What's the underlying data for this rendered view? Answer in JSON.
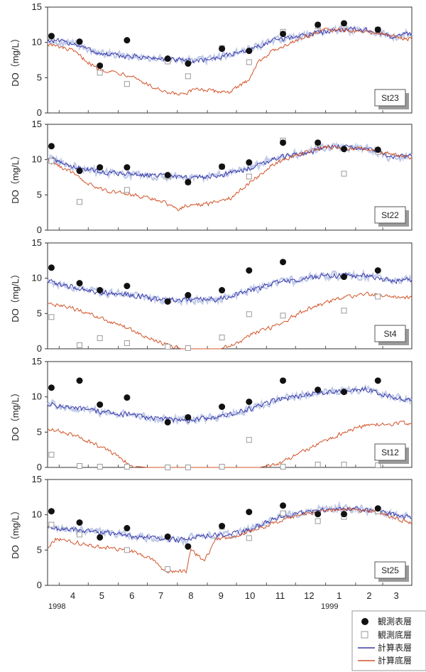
{
  "chart_data": {
    "type": "line",
    "y_axis_label": "DO（mg/L）",
    "yticks": [
      "0",
      "5",
      "10",
      "15"
    ],
    "ylim": [
      0,
      15
    ],
    "x_month_ticks": [
      "4",
      "5",
      "6",
      "7",
      "8",
      "9",
      "10",
      "11",
      "12",
      "1",
      "2",
      "3"
    ],
    "x_year_labels": [
      "1998",
      "1999"
    ],
    "x_domain": [
      "1998-03-20",
      "1999-03-31"
    ],
    "legend": {
      "obs_surface": "観測表層",
      "obs_bottom": "観測底層",
      "calc_surface": "計算表層",
      "calc_bottom": "計算底層"
    },
    "colors": {
      "calc_surface": "#3a3aa8",
      "calc_surface_halo": "#b9c4e6",
      "calc_bottom": "#d2542a",
      "obs_bottom_edge": "#9a9a9a"
    },
    "panels": [
      {
        "station": "St23",
        "obs_surface": [
          [
            "1998-03-24",
            10.9
          ],
          [
            "1998-04-22",
            10.1
          ],
          [
            "1998-05-13",
            6.7
          ],
          [
            "1998-06-10",
            10.3
          ],
          [
            "1998-07-22",
            7.7
          ],
          [
            "1998-08-12",
            7.0
          ],
          [
            "1998-09-16",
            9.1
          ],
          [
            "1998-10-14",
            8.8
          ],
          [
            "1998-11-18",
            11.2
          ],
          [
            "1998-12-24",
            12.5
          ],
          [
            "1999-01-20",
            12.7
          ],
          [
            "1999-02-24",
            11.8
          ]
        ],
        "obs_bottom": [
          [
            "1998-03-24",
            10.8
          ],
          [
            "1998-05-13",
            5.7
          ],
          [
            "1998-06-10",
            4.1
          ],
          [
            "1998-07-22",
            7.3
          ],
          [
            "1998-08-12",
            5.2
          ],
          [
            "1998-09-16",
            9.2
          ],
          [
            "1998-10-14",
            7.2
          ],
          [
            "1998-11-18",
            11.5
          ],
          [
            "1998-12-24",
            12.3
          ],
          [
            "1999-01-20",
            12.4
          ],
          [
            "1999-02-24",
            11.8
          ]
        ],
        "calc_surface": [
          [
            "1998-03-20",
            10.3
          ],
          [
            "1998-04-15",
            9.9
          ],
          [
            "1998-05-15",
            8.3
          ],
          [
            "1998-06-15",
            8.0
          ],
          [
            "1998-07-15",
            7.7
          ],
          [
            "1998-08-15",
            7.3
          ],
          [
            "1998-09-10",
            7.8
          ],
          [
            "1998-10-10",
            8.8
          ],
          [
            "1998-11-10",
            10.3
          ],
          [
            "1998-12-10",
            11.0
          ],
          [
            "1998-12-28",
            11.5
          ],
          [
            "1999-01-15",
            11.9
          ],
          [
            "1999-02-15",
            11.7
          ],
          [
            "1999-03-10",
            10.8
          ],
          [
            "1999-03-31",
            11.3
          ]
        ],
        "calc_bottom": [
          [
            "1998-03-20",
            9.8
          ],
          [
            "1998-04-15",
            8.8
          ],
          [
            "1998-05-10",
            6.3
          ],
          [
            "1998-06-15",
            5.3
          ],
          [
            "1998-07-01",
            4.0
          ],
          [
            "1998-07-20",
            2.8
          ],
          [
            "1998-08-10",
            2.6
          ],
          [
            "1998-08-20",
            3.5
          ],
          [
            "1998-09-05",
            3.1
          ],
          [
            "1998-09-25",
            3.0
          ],
          [
            "1998-10-12",
            4.5
          ],
          [
            "1998-10-25",
            7.5
          ],
          [
            "1998-11-10",
            9.0
          ],
          [
            "1998-12-05",
            10.5
          ],
          [
            "1999-01-01",
            11.8
          ],
          [
            "1999-02-15",
            11.5
          ],
          [
            "1999-03-31",
            10.4
          ]
        ]
      },
      {
        "station": "St22",
        "obs_surface": [
          [
            "1998-03-24",
            11.9
          ],
          [
            "1998-04-22",
            8.4
          ],
          [
            "1998-05-13",
            8.9
          ],
          [
            "1998-06-10",
            8.9
          ],
          [
            "1998-07-22",
            7.8
          ],
          [
            "1998-08-12",
            6.8
          ],
          [
            "1998-09-16",
            9.0
          ],
          [
            "1998-10-14",
            9.6
          ],
          [
            "1998-11-18",
            12.4
          ],
          [
            "1998-12-24",
            12.4
          ],
          [
            "1999-01-20",
            11.5
          ],
          [
            "1999-02-24",
            11.4
          ]
        ],
        "obs_bottom": [
          [
            "1998-03-24",
            9.8
          ],
          [
            "1998-04-22",
            4.0
          ],
          [
            "1998-06-10",
            5.7
          ],
          [
            "1998-07-22",
            7.6
          ],
          [
            "1998-08-12",
            6.8
          ],
          [
            "1998-09-16",
            9.0
          ],
          [
            "1998-10-14",
            7.6
          ],
          [
            "1998-11-18",
            12.7
          ],
          [
            "1998-12-24",
            12.2
          ],
          [
            "1999-01-20",
            8.0
          ],
          [
            "1999-02-24",
            11.1
          ]
        ],
        "calc_surface": [
          [
            "1998-03-20",
            10.2
          ],
          [
            "1998-04-15",
            9.0
          ],
          [
            "1998-05-15",
            8.2
          ],
          [
            "1998-06-15",
            8.0
          ],
          [
            "1998-07-15",
            7.7
          ],
          [
            "1998-08-15",
            7.4
          ],
          [
            "1998-09-10",
            7.7
          ],
          [
            "1998-10-10",
            8.6
          ],
          [
            "1998-11-10",
            10.2
          ],
          [
            "1998-12-10",
            10.9
          ],
          [
            "1998-12-28",
            11.6
          ],
          [
            "1999-01-15",
            11.9
          ],
          [
            "1999-02-15",
            11.5
          ],
          [
            "1999-03-10",
            10.2
          ],
          [
            "1999-03-31",
            10.5
          ]
        ],
        "calc_bottom": [
          [
            "1998-03-20",
            9.9
          ],
          [
            "1998-04-10",
            8.5
          ],
          [
            "1998-05-01",
            6.5
          ],
          [
            "1998-05-20",
            5.6
          ],
          [
            "1998-06-15",
            5.0
          ],
          [
            "1998-07-15",
            4.2
          ],
          [
            "1998-08-01",
            3.0
          ],
          [
            "1998-08-15",
            3.6
          ],
          [
            "1998-09-05",
            3.8
          ],
          [
            "1998-09-25",
            4.6
          ],
          [
            "1998-10-15",
            6.8
          ],
          [
            "1998-11-10",
            9.5
          ],
          [
            "1998-12-05",
            10.8
          ],
          [
            "1999-01-01",
            11.8
          ],
          [
            "1999-02-15",
            11.4
          ],
          [
            "1999-03-31",
            10.3
          ]
        ]
      },
      {
        "station": "St4",
        "obs_surface": [
          [
            "1998-03-24",
            11.5
          ],
          [
            "1998-04-22",
            9.3
          ],
          [
            "1998-05-13",
            8.3
          ],
          [
            "1998-06-10",
            8.9
          ],
          [
            "1998-07-22",
            6.7
          ],
          [
            "1998-08-12",
            7.6
          ],
          [
            "1998-09-16",
            8.3
          ],
          [
            "1998-10-14",
            11.1
          ],
          [
            "1998-11-18",
            12.3
          ],
          [
            "1999-01-20",
            10.2
          ],
          [
            "1999-02-24",
            11.1
          ]
        ],
        "obs_bottom": [
          [
            "1998-03-24",
            4.5
          ],
          [
            "1998-04-22",
            0.5
          ],
          [
            "1998-05-13",
            1.5
          ],
          [
            "1998-06-10",
            0.8
          ],
          [
            "1998-07-22",
            0.3
          ],
          [
            "1998-08-12",
            0.1
          ],
          [
            "1998-09-16",
            1.6
          ],
          [
            "1998-10-14",
            4.9
          ],
          [
            "1998-11-18",
            4.7
          ],
          [
            "1999-01-20",
            5.4
          ],
          [
            "1999-02-24",
            7.4
          ]
        ],
        "calc_surface": [
          [
            "1998-03-20",
            9.6
          ],
          [
            "1998-04-15",
            8.7
          ],
          [
            "1998-05-15",
            8.0
          ],
          [
            "1998-06-15",
            7.6
          ],
          [
            "1998-07-15",
            6.9
          ],
          [
            "1998-08-15",
            6.9
          ],
          [
            "1998-09-10",
            7.0
          ],
          [
            "1998-10-10",
            8.0
          ],
          [
            "1998-11-10",
            9.4
          ],
          [
            "1998-12-10",
            9.9
          ],
          [
            "1999-01-01",
            10.4
          ],
          [
            "1999-02-01",
            10.4
          ],
          [
            "1999-02-20",
            10.2
          ],
          [
            "1999-03-10",
            9.6
          ],
          [
            "1999-03-31",
            9.8
          ]
        ],
        "calc_bottom": [
          [
            "1998-03-20",
            6.4
          ],
          [
            "1998-04-15",
            5.7
          ],
          [
            "1998-05-10",
            4.5
          ],
          [
            "1998-06-10",
            3.0
          ],
          [
            "1998-07-01",
            1.5
          ],
          [
            "1998-07-25",
            0.4
          ],
          [
            "1998-08-05",
            0.0
          ],
          [
            "1998-09-15",
            0.0
          ],
          [
            "1998-10-05",
            1.0
          ],
          [
            "1998-10-20",
            2.3
          ],
          [
            "1998-11-10",
            3.2
          ],
          [
            "1998-12-10",
            5.4
          ],
          [
            "1999-01-10",
            7.0
          ],
          [
            "1999-02-10",
            7.8
          ],
          [
            "1999-03-31",
            7.2
          ]
        ]
      },
      {
        "station": "St12",
        "obs_surface": [
          [
            "1998-03-24",
            11.3
          ],
          [
            "1998-04-22",
            12.3
          ],
          [
            "1998-05-13",
            8.9
          ],
          [
            "1998-06-10",
            9.9
          ],
          [
            "1998-07-22",
            6.4
          ],
          [
            "1998-08-12",
            7.1
          ],
          [
            "1998-09-16",
            8.6
          ],
          [
            "1998-10-14",
            9.3
          ],
          [
            "1998-11-18",
            12.3
          ],
          [
            "1998-12-24",
            11.0
          ],
          [
            "1999-01-20",
            10.7
          ],
          [
            "1999-02-24",
            12.3
          ]
        ],
        "obs_bottom": [
          [
            "1998-03-24",
            1.8
          ],
          [
            "1998-04-22",
            0.2
          ],
          [
            "1998-05-13",
            0.1
          ],
          [
            "1998-06-10",
            0.1
          ],
          [
            "1998-07-22",
            0.0
          ],
          [
            "1998-08-12",
            0.0
          ],
          [
            "1998-09-16",
            0.1
          ],
          [
            "1998-10-14",
            3.9
          ],
          [
            "1998-11-18",
            0.1
          ],
          [
            "1998-12-24",
            0.4
          ],
          [
            "1999-01-20",
            0.4
          ],
          [
            "1999-02-24",
            0.3
          ]
        ],
        "calc_surface": [
          [
            "1998-03-20",
            9.0
          ],
          [
            "1998-04-15",
            8.4
          ],
          [
            "1998-05-15",
            7.9
          ],
          [
            "1998-06-15",
            7.4
          ],
          [
            "1998-07-15",
            6.9
          ],
          [
            "1998-08-15",
            6.7
          ],
          [
            "1998-09-10",
            7.1
          ],
          [
            "1998-10-10",
            8.0
          ],
          [
            "1998-11-10",
            9.5
          ],
          [
            "1998-12-10",
            10.3
          ],
          [
            "1999-01-10",
            10.7
          ],
          [
            "1999-02-10",
            11.1
          ],
          [
            "1999-03-01",
            10.3
          ],
          [
            "1999-03-31",
            9.4
          ]
        ],
        "calc_bottom": [
          [
            "1998-03-20",
            5.5
          ],
          [
            "1998-04-15",
            4.6
          ],
          [
            "1998-05-10",
            3.2
          ],
          [
            "1998-06-01",
            1.5
          ],
          [
            "1998-06-15",
            0.2
          ],
          [
            "1998-07-01",
            0.0
          ],
          [
            "1998-10-25",
            0.0
          ],
          [
            "1998-11-15",
            0.6
          ],
          [
            "1998-12-01",
            1.8
          ],
          [
            "1998-12-20",
            3.0
          ],
          [
            "1999-01-15",
            4.6
          ],
          [
            "1999-02-10",
            6.0
          ],
          [
            "1999-03-31",
            6.3
          ]
        ]
      },
      {
        "station": "St25",
        "obs_surface": [
          [
            "1998-03-24",
            10.5
          ],
          [
            "1998-04-22",
            8.9
          ],
          [
            "1998-05-13",
            6.8
          ],
          [
            "1998-06-10",
            8.1
          ],
          [
            "1998-07-22",
            6.9
          ],
          [
            "1998-08-12",
            5.5
          ],
          [
            "1998-09-16",
            8.4
          ],
          [
            "1998-10-14",
            10.4
          ],
          [
            "1998-11-18",
            11.3
          ],
          [
            "1998-12-24",
            10.1
          ],
          [
            "1999-01-20",
            10.1
          ],
          [
            "1999-02-24",
            10.9
          ]
        ],
        "obs_bottom": [
          [
            "1998-03-24",
            8.6
          ],
          [
            "1998-04-22",
            7.2
          ],
          [
            "1998-06-10",
            5.0
          ],
          [
            "1998-07-22",
            2.3
          ],
          [
            "1998-09-16",
            8.3
          ],
          [
            "1998-10-14",
            6.7
          ],
          [
            "1998-11-18",
            10.2
          ],
          [
            "1998-12-24",
            9.1
          ],
          [
            "1999-01-20",
            9.7
          ],
          [
            "1999-02-24",
            10.5
          ]
        ],
        "calc_surface": [
          [
            "1998-03-20",
            8.1
          ],
          [
            "1998-04-15",
            7.9
          ],
          [
            "1998-05-15",
            7.5
          ],
          [
            "1998-06-15",
            7.0
          ],
          [
            "1998-07-15",
            6.6
          ],
          [
            "1998-08-08",
            6.4
          ],
          [
            "1998-08-20",
            7.0
          ],
          [
            "1998-09-10",
            7.0
          ],
          [
            "1998-10-10",
            7.6
          ],
          [
            "1998-11-10",
            9.5
          ],
          [
            "1998-12-10",
            10.3
          ],
          [
            "1999-01-15",
            11.0
          ],
          [
            "1999-02-15",
            10.7
          ],
          [
            "1999-03-31",
            9.5
          ]
        ],
        "calc_bottom": [
          [
            "1998-03-20",
            5.3
          ],
          [
            "1998-03-28",
            6.6
          ],
          [
            "1998-04-20",
            6.0
          ],
          [
            "1998-05-15",
            5.4
          ],
          [
            "1998-06-15",
            4.8
          ],
          [
            "1998-07-05",
            3.8
          ],
          [
            "1998-07-20",
            2.0
          ],
          [
            "1998-08-10",
            1.9
          ],
          [
            "1998-08-15",
            5.3
          ],
          [
            "1998-08-28",
            3.4
          ],
          [
            "1998-09-10",
            6.5
          ],
          [
            "1998-10-01",
            7.0
          ],
          [
            "1998-10-25",
            8.0
          ],
          [
            "1998-11-20",
            9.5
          ],
          [
            "1998-12-20",
            10.4
          ],
          [
            "1999-01-25",
            10.8
          ],
          [
            "1999-02-20",
            10.5
          ],
          [
            "1999-03-31",
            8.8
          ]
        ]
      }
    ]
  }
}
